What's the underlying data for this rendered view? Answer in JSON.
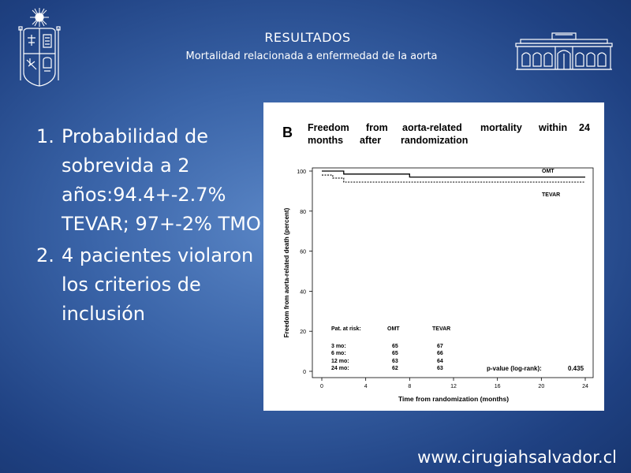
{
  "header": {
    "title": "RESULTADOS",
    "subtitle": "Mortalidad relacionada a enfermedad de la aorta"
  },
  "bullets": [
    {
      "num": "1.",
      "text": "Probabilidad de sobrevida a 2 años:94.4+-2.7% TEVAR; 97+-2% TMO"
    },
    {
      "num": "2.",
      "text": "4 pacientes violaron los criterios de inclusión"
    }
  ],
  "footer": {
    "url": "www.cirugiahsalvador.cl"
  },
  "chart_data": {
    "type": "line",
    "panel_label": "B",
    "title_line1": [
      "Freedom",
      "from",
      "aorta-related",
      "mortality",
      "within",
      "24"
    ],
    "title_line2": [
      "months",
      "after",
      "randomization"
    ],
    "xlabel": "Time from randomization (months)",
    "ylabel": "Freedom from aorta-related death (percent)",
    "xlim": [
      0,
      24
    ],
    "ylim": [
      0,
      100
    ],
    "x_ticks": [
      0,
      4,
      8,
      12,
      16,
      20,
      24
    ],
    "y_ticks": [
      0,
      20,
      40,
      60,
      80,
      100
    ],
    "series": [
      {
        "name": "OMT",
        "style": "solid",
        "x": [
          0,
          2,
          2,
          8,
          8,
          24
        ],
        "y": [
          100,
          100,
          98.5,
          98.5,
          97,
          97
        ]
      },
      {
        "name": "TEVAR",
        "style": "dotted",
        "x": [
          0,
          1,
          1,
          2,
          2,
          24
        ],
        "y": [
          98,
          98,
          96.5,
          96.5,
          94.5,
          94.5
        ]
      }
    ],
    "risk_table": {
      "title": "Pat. at risk:",
      "columns": [
        "OMT",
        "TEVAR"
      ],
      "rows": [
        {
          "label": "3 mo:",
          "values": [
            "65",
            "67"
          ]
        },
        {
          "label": "6 mo:",
          "values": [
            "65",
            "66"
          ]
        },
        {
          "label": "12 mo:",
          "values": [
            "63",
            "64"
          ]
        },
        {
          "label": "24 mo:",
          "values": [
            "62",
            "63"
          ]
        }
      ]
    },
    "p_value_label": "p-value (log-rank):",
    "p_value": "0.435",
    "colors": {
      "line": "#000000",
      "background": "#ffffff"
    }
  }
}
